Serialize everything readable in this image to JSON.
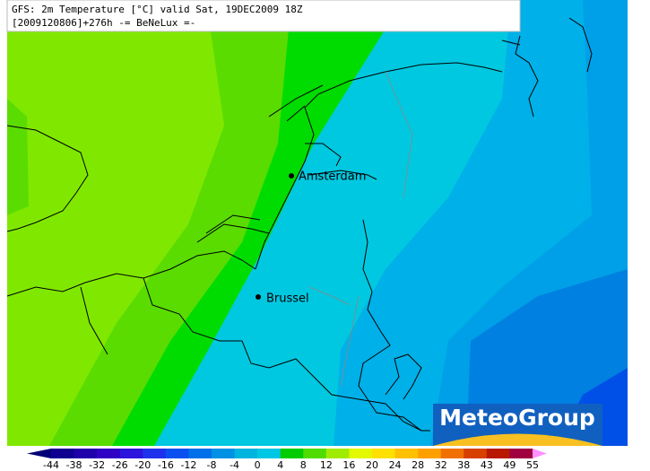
{
  "header": {
    "line1": "GFS: 2m Temperature [°C] valid Sat, 19DEC2009 18Z",
    "line2": "[2009120806]+276h -= BeNeLux =-"
  },
  "cities": [
    {
      "name": "Amsterdam"
    },
    {
      "name": "Brussel"
    }
  ],
  "logo": "MeteoGroup",
  "colorbar": {
    "ticks": [
      -44,
      -38,
      -32,
      -26,
      -20,
      -16,
      -12,
      -8,
      -4,
      0,
      4,
      8,
      12,
      16,
      20,
      24,
      28,
      32,
      38,
      43,
      49,
      55
    ],
    "colors": [
      "#000078",
      "#100090",
      "#2000aa",
      "#3000c4",
      "#2c14dc",
      "#1e32ec",
      "#0a50f0",
      "#0070ea",
      "#0090e4",
      "#00b4e0",
      "#00c8e4",
      "#00cc00",
      "#50dc00",
      "#a0ec00",
      "#e4f800",
      "#ffe000",
      "#ffc000",
      "#ffa000",
      "#f07000",
      "#d84000",
      "#b81800",
      "#a00040",
      "#e040c0",
      "#ff90ff"
    ]
  }
}
